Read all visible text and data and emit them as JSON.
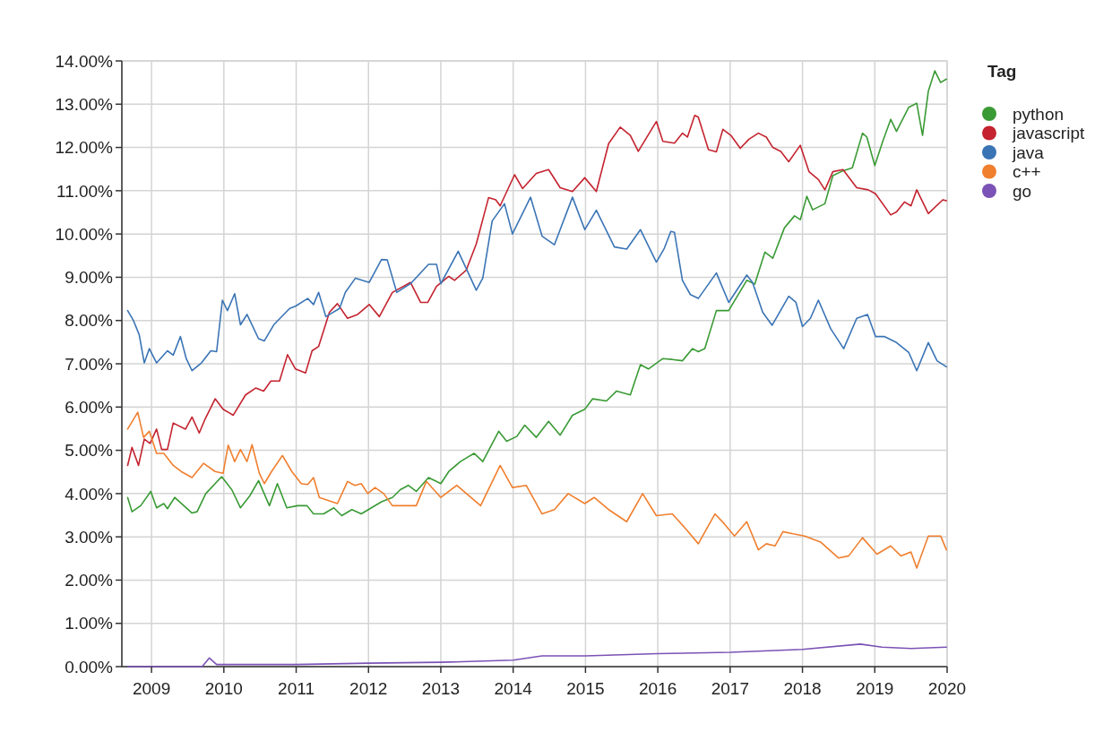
{
  "chart_data": {
    "type": "line",
    "legend_title": "Tag",
    "legend": "top right",
    "grid": true,
    "line_style": "solid",
    "marker": "none",
    "xlim": [
      2008.59,
      2020
    ],
    "xticks": [
      2009,
      2010,
      2011,
      2012,
      2013,
      2014,
      2015,
      2016,
      2017,
      2018,
      2019,
      2020
    ],
    "ylim": [
      0,
      14
    ],
    "yticks": [
      {
        "value": 0,
        "label": "0.00%"
      },
      {
        "value": 1,
        "label": "1.00%"
      },
      {
        "value": 2,
        "label": "2.00%"
      },
      {
        "value": 3,
        "label": "3.00%"
      },
      {
        "value": 4,
        "label": "4.00%"
      },
      {
        "value": 5,
        "label": "5.00%"
      },
      {
        "value": 6,
        "label": "6.00%"
      },
      {
        "value": 7,
        "label": "7.00%"
      },
      {
        "value": 8,
        "label": "8.00%"
      },
      {
        "value": 9,
        "label": "9.00%"
      },
      {
        "value": 10,
        "label": "10.00%"
      },
      {
        "value": 11,
        "label": "11.00%"
      },
      {
        "value": 12,
        "label": "12.00%"
      },
      {
        "value": 13,
        "label": "13.00%"
      },
      {
        "value": 14,
        "label": "14.00%"
      }
    ],
    "series": [
      {
        "name": "python",
        "color": "#3a9a35",
        "x": [
          2008.67,
          2008.73,
          2008.85,
          2008.99,
          2009.07,
          2009.17,
          2009.22,
          2009.32,
          2009.56,
          2009.63,
          2009.75,
          2009.97,
          2010.11,
          2010.23,
          2010.36,
          2010.48,
          2010.63,
          2010.74,
          2010.87,
          2011.02,
          2011.15,
          2011.24,
          2011.38,
          2011.52,
          2011.63,
          2011.77,
          2011.9,
          2012.04,
          2012.18,
          2012.33,
          2012.44,
          2012.55,
          2012.66,
          2012.83,
          2013.0,
          2013.11,
          2013.27,
          2013.46,
          2013.58,
          2013.8,
          2013.91,
          2014.05,
          2014.16,
          2014.32,
          2014.49,
          2014.65,
          2014.82,
          2014.99,
          2015.1,
          2015.29,
          2015.43,
          2015.62,
          2015.76,
          2015.87,
          2016.07,
          2016.2,
          2016.34,
          2016.48,
          2016.56,
          2016.65,
          2016.81,
          2016.98,
          2017.23,
          2017.34,
          2017.48,
          2017.59,
          2017.75,
          2017.89,
          2017.97,
          2018.06,
          2018.14,
          2018.31,
          2018.42,
          2018.56,
          2018.69,
          2018.83,
          2018.89,
          2019.0,
          2019.11,
          2019.22,
          2019.3,
          2019.47,
          2019.58,
          2019.66,
          2019.74,
          2019.83,
          2019.91,
          2019.99
        ],
        "values": [
          3.91,
          3.58,
          3.72,
          4.05,
          3.67,
          3.77,
          3.65,
          3.91,
          3.55,
          3.58,
          4.0,
          4.39,
          4.09,
          3.67,
          3.95,
          4.3,
          3.72,
          4.23,
          3.67,
          3.72,
          3.72,
          3.53,
          3.53,
          3.67,
          3.49,
          3.63,
          3.53,
          3.67,
          3.81,
          3.91,
          4.09,
          4.19,
          4.05,
          4.37,
          4.23,
          4.51,
          4.74,
          4.93,
          4.74,
          5.44,
          5.21,
          5.32,
          5.58,
          5.3,
          5.67,
          5.35,
          5.81,
          5.95,
          6.19,
          6.14,
          6.37,
          6.28,
          6.98,
          6.88,
          7.12,
          7.1,
          7.07,
          7.35,
          7.28,
          7.35,
          8.23,
          8.23,
          8.93,
          8.84,
          9.58,
          9.44,
          10.14,
          10.42,
          10.33,
          10.87,
          10.56,
          10.7,
          11.35,
          11.46,
          11.53,
          12.33,
          12.24,
          11.58,
          12.14,
          12.65,
          12.37,
          12.93,
          13.02,
          12.28,
          13.3,
          13.77,
          13.5,
          13.58
        ]
      },
      {
        "name": "javascript",
        "color": "#c4232f",
        "x": [
          2008.67,
          2008.73,
          2008.82,
          2008.9,
          2008.98,
          2009.07,
          2009.14,
          2009.22,
          2009.3,
          2009.47,
          2009.56,
          2009.66,
          2009.74,
          2009.88,
          2009.99,
          2010.13,
          2010.3,
          2010.44,
          2010.55,
          2010.65,
          2010.77,
          2010.88,
          2010.99,
          2011.13,
          2011.22,
          2011.31,
          2011.46,
          2011.57,
          2011.71,
          2011.85,
          2012.01,
          2012.15,
          2012.33,
          2012.58,
          2012.72,
          2012.82,
          2012.94,
          2013.11,
          2013.19,
          2013.35,
          2013.49,
          2013.66,
          2013.76,
          2013.82,
          2014.02,
          2014.13,
          2014.32,
          2014.49,
          2014.65,
          2014.82,
          2014.99,
          2015.15,
          2015.32,
          2015.48,
          2015.62,
          2015.73,
          2015.98,
          2016.07,
          2016.23,
          2016.34,
          2016.41,
          2016.51,
          2016.56,
          2016.7,
          2016.81,
          2016.9,
          2017.01,
          2017.14,
          2017.26,
          2017.39,
          2017.5,
          2017.59,
          2017.7,
          2017.81,
          2017.97,
          2018.09,
          2018.22,
          2018.31,
          2018.42,
          2018.56,
          2018.75,
          2018.91,
          2019.01,
          2019.22,
          2019.3,
          2019.41,
          2019.5,
          2019.58,
          2019.74,
          2019.94,
          2019.99
        ],
        "values": [
          4.65,
          5.07,
          4.65,
          5.26,
          5.16,
          5.49,
          5.02,
          5.02,
          5.63,
          5.49,
          5.77,
          5.4,
          5.72,
          6.19,
          5.95,
          5.81,
          6.28,
          6.44,
          6.37,
          6.6,
          6.6,
          7.21,
          6.88,
          6.79,
          7.3,
          7.4,
          8.19,
          8.39,
          8.05,
          8.14,
          8.37,
          8.09,
          8.65,
          8.88,
          8.42,
          8.42,
          8.79,
          9.02,
          8.93,
          9.16,
          9.77,
          10.84,
          10.79,
          10.65,
          11.37,
          11.05,
          11.4,
          11.49,
          11.07,
          10.98,
          11.3,
          10.98,
          12.09,
          12.47,
          12.28,
          11.91,
          12.6,
          12.14,
          12.1,
          12.33,
          12.24,
          12.74,
          12.7,
          11.95,
          11.9,
          12.42,
          12.28,
          11.98,
          12.19,
          12.33,
          12.24,
          12.0,
          11.91,
          11.67,
          12.05,
          11.44,
          11.26,
          11.02,
          11.44,
          11.49,
          11.07,
          11.02,
          10.93,
          10.44,
          10.51,
          10.74,
          10.65,
          11.02,
          10.47,
          10.79,
          10.77
        ]
      },
      {
        "name": "java",
        "color": "#3a74b5",
        "x": [
          2008.67,
          2008.75,
          2008.83,
          2008.9,
          2008.97,
          2009.07,
          2009.22,
          2009.3,
          2009.4,
          2009.48,
          2009.56,
          2009.69,
          2009.82,
          2009.9,
          2009.98,
          2010.05,
          2010.15,
          2010.23,
          2010.32,
          2010.48,
          2010.56,
          2010.69,
          2010.91,
          2010.99,
          2011.16,
          2011.24,
          2011.31,
          2011.41,
          2011.6,
          2011.68,
          2011.82,
          2012.01,
          2012.18,
          2012.26,
          2012.39,
          2012.58,
          2012.83,
          2012.94,
          2013.0,
          2013.24,
          2013.49,
          2013.58,
          2013.71,
          2013.88,
          2013.99,
          2014.24,
          2014.4,
          2014.57,
          2014.82,
          2014.99,
          2015.15,
          2015.4,
          2015.57,
          2015.76,
          2015.98,
          2016.09,
          2016.18,
          2016.23,
          2016.34,
          2016.45,
          2016.56,
          2016.81,
          2016.98,
          2017.23,
          2017.31,
          2017.45,
          2017.58,
          2017.81,
          2017.91,
          2018.0,
          2018.11,
          2018.22,
          2018.39,
          2018.57,
          2018.75,
          2018.9,
          2019.01,
          2019.13,
          2019.3,
          2019.47,
          2019.58,
          2019.74,
          2019.86,
          2019.99
        ],
        "values": [
          8.23,
          8.0,
          7.67,
          7.02,
          7.35,
          7.02,
          7.3,
          7.2,
          7.63,
          7.12,
          6.84,
          7.02,
          7.3,
          7.28,
          8.47,
          8.23,
          8.62,
          7.9,
          8.14,
          7.58,
          7.53,
          7.9,
          8.28,
          8.33,
          8.51,
          8.37,
          8.65,
          8.09,
          8.28,
          8.65,
          8.98,
          8.88,
          9.41,
          9.4,
          8.65,
          8.85,
          9.3,
          9.3,
          8.85,
          9.6,
          8.7,
          8.98,
          10.3,
          10.7,
          10.0,
          10.85,
          9.95,
          9.75,
          10.85,
          10.1,
          10.55,
          9.7,
          9.65,
          10.1,
          9.35,
          9.67,
          10.06,
          10.04,
          8.93,
          8.6,
          8.51,
          9.1,
          8.42,
          9.05,
          8.88,
          8.19,
          7.89,
          8.56,
          8.42,
          7.86,
          8.05,
          8.47,
          7.81,
          7.35,
          8.05,
          8.14,
          7.63,
          7.63,
          7.49,
          7.26,
          6.84,
          7.49,
          7.07,
          6.93
        ]
      },
      {
        "name": "c++",
        "color": "#f07f2e",
        "x": [
          2008.67,
          2008.81,
          2008.89,
          2008.97,
          2009.07,
          2009.17,
          2009.3,
          2009.41,
          2009.56,
          2009.72,
          2009.88,
          2009.99,
          2010.06,
          2010.15,
          2010.23,
          2010.32,
          2010.39,
          2010.49,
          2010.56,
          2010.66,
          2010.81,
          2010.94,
          2011.07,
          2011.16,
          2011.24,
          2011.32,
          2011.57,
          2011.71,
          2011.81,
          2011.9,
          2011.99,
          2012.09,
          2012.21,
          2012.33,
          2012.66,
          2012.8,
          2013.0,
          2013.22,
          2013.55,
          2013.82,
          2013.99,
          2014.18,
          2014.4,
          2014.57,
          2014.76,
          2014.99,
          2015.12,
          2015.32,
          2015.57,
          2015.79,
          2015.98,
          2016.2,
          2016.4,
          2016.56,
          2016.79,
          2016.92,
          2017.06,
          2017.23,
          2017.39,
          2017.5,
          2017.62,
          2017.73,
          2017.87,
          2018.03,
          2018.25,
          2018.5,
          2018.64,
          2018.83,
          2019.03,
          2019.22,
          2019.36,
          2019.5,
          2019.58,
          2019.74,
          2019.91,
          2019.99
        ],
        "values": [
          5.49,
          5.88,
          5.3,
          5.44,
          4.93,
          4.93,
          4.65,
          4.51,
          4.37,
          4.7,
          4.51,
          4.47,
          5.12,
          4.74,
          5.02,
          4.74,
          5.13,
          4.47,
          4.23,
          4.51,
          4.88,
          4.51,
          4.23,
          4.21,
          4.37,
          3.91,
          3.77,
          4.28,
          4.19,
          4.23,
          4.0,
          4.14,
          4.0,
          3.72,
          3.72,
          4.28,
          3.91,
          4.19,
          3.72,
          4.65,
          4.14,
          4.19,
          3.53,
          3.63,
          4.0,
          3.77,
          3.91,
          3.63,
          3.35,
          4.0,
          3.49,
          3.53,
          3.16,
          2.84,
          3.53,
          3.3,
          3.02,
          3.35,
          2.7,
          2.84,
          2.79,
          3.12,
          3.07,
          3.02,
          2.88,
          2.51,
          2.56,
          2.98,
          2.6,
          2.79,
          2.56,
          2.65,
          2.28,
          3.02,
          3.02,
          2.7
        ]
      },
      {
        "name": "go",
        "color": "#7b52b5",
        "x": [
          2008.67,
          2009.7,
          2009.8,
          2009.9,
          2011.0,
          2012.0,
          2013.0,
          2014.0,
          2014.4,
          2015.0,
          2016.0,
          2017.0,
          2018.0,
          2018.8,
          2019.1,
          2019.5,
          2019.99
        ],
        "values": [
          0,
          0,
          0.2,
          0.05,
          0.05,
          0.08,
          0.1,
          0.15,
          0.25,
          0.25,
          0.3,
          0.33,
          0.4,
          0.52,
          0.45,
          0.42,
          0.45
        ]
      }
    ]
  }
}
